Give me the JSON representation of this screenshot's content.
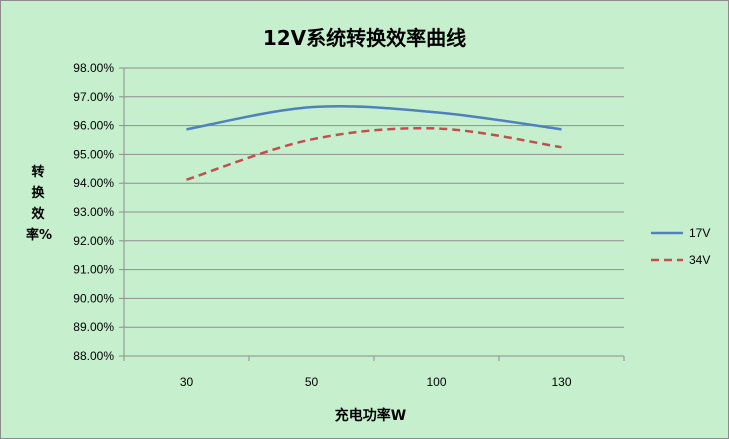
{
  "chart_data": {
    "type": "line",
    "title": "12V系统转换效率曲线",
    "xlabel": "充电功率W",
    "ylabel": "转换效率%",
    "categories": [
      "30",
      "50",
      "100",
      "130"
    ],
    "ylim": [
      0.88,
      0.98
    ],
    "yticks": [
      "98.00%",
      "97.00%",
      "96.00%",
      "95.00%",
      "94.00%",
      "93.00%",
      "92.00%",
      "91.00%",
      "90.00%",
      "89.00%",
      "88.00%"
    ],
    "grid": true,
    "legend": "right",
    "series": [
      {
        "name": "17V",
        "color": "#4f81bd",
        "dash": "solid",
        "values": [
          0.9587,
          0.9664,
          0.9646,
          0.9587
        ]
      },
      {
        "name": "34V",
        "color": "#c0504d",
        "dash": "dashed",
        "values": [
          0.9412,
          0.9552,
          0.959,
          0.9525
        ]
      }
    ]
  }
}
